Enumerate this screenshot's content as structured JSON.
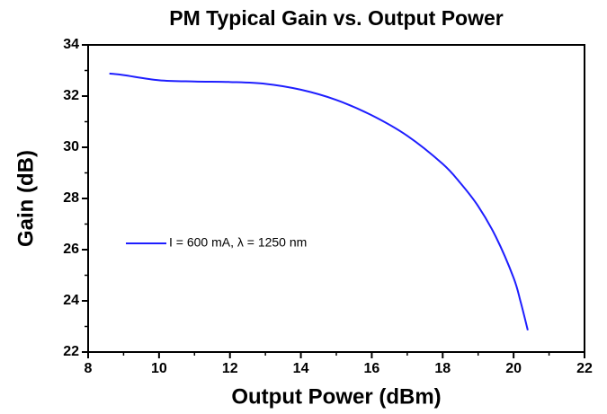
{
  "chart_data": {
    "type": "line",
    "title": "PM Typical Gain vs. Output Power",
    "xlabel": "Output Power (dBm)",
    "ylabel": "Gain (dB)",
    "x": [
      8.6,
      9,
      10,
      11,
      12,
      13,
      14,
      15,
      16,
      17,
      18,
      18.5,
      19,
      19.5,
      20,
      20.2,
      20.4
    ],
    "series": [
      {
        "name": "I = 600 mA, λ = 1250 nm",
        "color": "#1e1eff",
        "values": [
          32.88,
          32.82,
          32.62,
          32.57,
          32.55,
          32.48,
          32.25,
          31.85,
          31.25,
          30.45,
          29.35,
          28.6,
          27.7,
          26.5,
          24.9,
          23.95,
          22.85
        ]
      }
    ],
    "xlim": [
      8,
      22
    ],
    "xticks": [
      8,
      10,
      12,
      14,
      16,
      18,
      20,
      22
    ],
    "xminorticks": [
      9,
      11,
      13,
      15,
      17,
      19,
      21
    ],
    "ylim": [
      22,
      34
    ],
    "yticks": [
      22,
      24,
      26,
      28,
      30,
      32,
      34
    ],
    "yminorticks": [
      23,
      25,
      27,
      29,
      31,
      33
    ],
    "legend": "center left",
    "grid": false
  }
}
